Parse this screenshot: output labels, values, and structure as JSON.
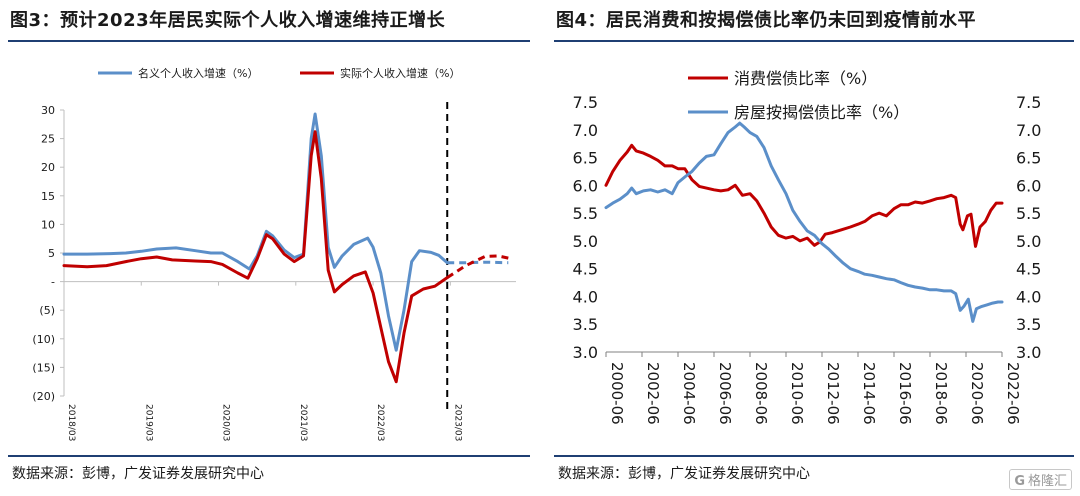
{
  "left_panel": {
    "title": "图3：预计2023年居民实际个人收入增速维持正增长",
    "source": "数据来源：彭博，广发证券发展研究中心"
  },
  "right_panel": {
    "title": "图4：居民消费和按揭偿债比率仍未回到疫情前水平",
    "source": "数据来源：彭博，广发证券发展研究中心"
  },
  "watermark": {
    "mark": "G",
    "text": "格隆汇"
  },
  "colors": {
    "blue": "#5b8fc9",
    "red": "#c00000",
    "rule": "#1f3f73",
    "axis": "#bfbfbf"
  },
  "chart_data": [
    {
      "type": "line",
      "xlabel": "",
      "ylabel": "",
      "ylim": [
        -20,
        30
      ],
      "y_ticks": [
        30,
        25,
        20,
        15,
        10,
        5,
        0,
        -5,
        -10,
        -15,
        -20
      ],
      "y_tick_labels": [
        "30",
        "25",
        "20",
        "15",
        "10",
        "5",
        "-",
        "(5)",
        "(10)",
        "(15)",
        "(20)"
      ],
      "x_tick_labels": [
        "2018/03",
        "2019/03",
        "2020/03",
        "2021/03",
        "2022/03",
        "2023/03"
      ],
      "legend": {
        "position": "top"
      },
      "vertical_marker": {
        "x": 2022.96,
        "style": "dashed"
      },
      "series": [
        {
          "name": "名义个人收入增速（%）",
          "color": "#5b8fc9",
          "points": [
            [
              2018.0,
              4.8
            ],
            [
              2018.3,
              4.8
            ],
            [
              2018.6,
              4.9
            ],
            [
              2018.8,
              5.0
            ],
            [
              2019.0,
              5.3
            ],
            [
              2019.2,
              5.7
            ],
            [
              2019.45,
              5.9
            ],
            [
              2019.7,
              5.4
            ],
            [
              2019.9,
              5.0
            ],
            [
              2020.05,
              5.0
            ],
            [
              2020.25,
              3.5
            ],
            [
              2020.4,
              2.2
            ],
            [
              2020.5,
              4.5
            ],
            [
              2020.62,
              8.8
            ],
            [
              2020.7,
              8.0
            ],
            [
              2020.85,
              5.5
            ],
            [
              2020.98,
              4.2
            ],
            [
              2021.1,
              4.8
            ],
            [
              2021.2,
              25.0
            ],
            [
              2021.25,
              29.3
            ],
            [
              2021.33,
              22.0
            ],
            [
              2021.42,
              6.0
            ],
            [
              2021.5,
              2.5
            ],
            [
              2021.6,
              4.5
            ],
            [
              2021.75,
              6.5
            ],
            [
              2021.93,
              7.6
            ],
            [
              2022.0,
              6.0
            ],
            [
              2022.1,
              1.5
            ],
            [
              2022.2,
              -6.0
            ],
            [
              2022.3,
              -12.0
            ],
            [
              2022.4,
              -5.0
            ],
            [
              2022.5,
              3.5
            ],
            [
              2022.6,
              5.4
            ],
            [
              2022.75,
              5.1
            ],
            [
              2022.85,
              4.6
            ],
            [
              2022.96,
              3.3
            ]
          ]
        },
        {
          "name": "实际个人收入增速（%）",
          "color": "#c00000",
          "points": [
            [
              2018.0,
              2.8
            ],
            [
              2018.3,
              2.6
            ],
            [
              2018.55,
              2.8
            ],
            [
              2018.8,
              3.5
            ],
            [
              2019.0,
              4.0
            ],
            [
              2019.2,
              4.3
            ],
            [
              2019.4,
              3.8
            ],
            [
              2019.7,
              3.6
            ],
            [
              2019.9,
              3.5
            ],
            [
              2020.05,
              3.0
            ],
            [
              2020.25,
              1.5
            ],
            [
              2020.38,
              0.6
            ],
            [
              2020.5,
              4.0
            ],
            [
              2020.62,
              8.2
            ],
            [
              2020.7,
              7.5
            ],
            [
              2020.85,
              4.8
            ],
            [
              2020.98,
              3.5
            ],
            [
              2021.1,
              4.5
            ],
            [
              2021.2,
              22.0
            ],
            [
              2021.25,
              26.2
            ],
            [
              2021.33,
              18.0
            ],
            [
              2021.42,
              2.0
            ],
            [
              2021.5,
              -1.8
            ],
            [
              2021.6,
              -0.5
            ],
            [
              2021.75,
              1.0
            ],
            [
              2021.9,
              1.7
            ],
            [
              2022.0,
              -2.0
            ],
            [
              2022.1,
              -8.0
            ],
            [
              2022.2,
              -14.0
            ],
            [
              2022.3,
              -17.5
            ],
            [
              2022.4,
              -9.0
            ],
            [
              2022.5,
              -2.5
            ],
            [
              2022.65,
              -1.3
            ],
            [
              2022.8,
              -0.8
            ],
            [
              2022.96,
              0.7
            ]
          ]
        }
      ],
      "forecast": [
        {
          "color": "#5b8fc9",
          "points": [
            [
              2022.96,
              3.3
            ],
            [
              2023.2,
              3.3
            ],
            [
              2023.45,
              3.4
            ],
            [
              2023.75,
              3.3
            ]
          ]
        },
        {
          "color": "#c00000",
          "points": [
            [
              2022.96,
              0.7
            ],
            [
              2023.2,
              2.8
            ],
            [
              2023.45,
              4.4
            ],
            [
              2023.62,
              4.5
            ],
            [
              2023.75,
              4.1
            ]
          ]
        }
      ]
    },
    {
      "type": "line",
      "xlabel": "",
      "ylabel": "",
      "xlim": [
        2000.42,
        2022.42
      ],
      "ylim": [
        3.0,
        7.5
      ],
      "y_ticks": [
        3.0,
        3.5,
        4.0,
        4.5,
        5.0,
        5.5,
        6.0,
        6.5,
        7.0,
        7.5
      ],
      "y_tick_labels": [
        "3.0",
        "3.5",
        "4.0",
        "4.5",
        "5.0",
        "5.5",
        "6.0",
        "6.5",
        "7.0",
        "7.5"
      ],
      "x_ticks": [
        2000.42,
        2002.42,
        2004.42,
        2006.42,
        2008.42,
        2010.42,
        2012.42,
        2014.42,
        2016.42,
        2018.42,
        2020.42,
        2022.42
      ],
      "x_tick_labels": [
        "2000-06",
        "2002-06",
        "2004-06",
        "2006-06",
        "2008-06",
        "2010-06",
        "2012-06",
        "2014-06",
        "2016-06",
        "2018-06",
        "2020-06",
        "2022-06"
      ],
      "legend": {
        "position": "top-left"
      },
      "series": [
        {
          "name": "消费偿债比率（%）",
          "color": "#c00000",
          "points": [
            [
              2000.42,
              6.0
            ],
            [
              2000.8,
              6.25
            ],
            [
              2001.2,
              6.45
            ],
            [
              2001.6,
              6.6
            ],
            [
              2001.85,
              6.72
            ],
            [
              2002.1,
              6.62
            ],
            [
              2002.5,
              6.58
            ],
            [
              2002.9,
              6.52
            ],
            [
              2003.3,
              6.45
            ],
            [
              2003.7,
              6.35
            ],
            [
              2004.1,
              6.35
            ],
            [
              2004.42,
              6.3
            ],
            [
              2004.8,
              6.3
            ],
            [
              2005.2,
              6.1
            ],
            [
              2005.6,
              5.98
            ],
            [
              2006.0,
              5.95
            ],
            [
              2006.42,
              5.92
            ],
            [
              2006.8,
              5.9
            ],
            [
              2007.2,
              5.92
            ],
            [
              2007.6,
              6.0
            ],
            [
              2008.0,
              5.82
            ],
            [
              2008.42,
              5.85
            ],
            [
              2008.8,
              5.72
            ],
            [
              2009.2,
              5.5
            ],
            [
              2009.6,
              5.25
            ],
            [
              2010.0,
              5.1
            ],
            [
              2010.42,
              5.05
            ],
            [
              2010.8,
              5.08
            ],
            [
              2011.2,
              5.0
            ],
            [
              2011.6,
              5.05
            ],
            [
              2012.0,
              4.92
            ],
            [
              2012.3,
              4.98
            ],
            [
              2012.6,
              5.12
            ],
            [
              2013.0,
              5.15
            ],
            [
              2013.5,
              5.2
            ],
            [
              2014.0,
              5.25
            ],
            [
              2014.42,
              5.3
            ],
            [
              2014.8,
              5.35
            ],
            [
              2015.2,
              5.45
            ],
            [
              2015.6,
              5.5
            ],
            [
              2016.0,
              5.45
            ],
            [
              2016.42,
              5.58
            ],
            [
              2016.8,
              5.65
            ],
            [
              2017.2,
              5.65
            ],
            [
              2017.6,
              5.7
            ],
            [
              2018.0,
              5.68
            ],
            [
              2018.42,
              5.72
            ],
            [
              2018.8,
              5.76
            ],
            [
              2019.2,
              5.78
            ],
            [
              2019.6,
              5.82
            ],
            [
              2019.85,
              5.78
            ],
            [
              2020.1,
              5.3
            ],
            [
              2020.25,
              5.2
            ],
            [
              2020.5,
              5.45
            ],
            [
              2020.7,
              5.48
            ],
            [
              2020.95,
              4.9
            ],
            [
              2021.2,
              5.25
            ],
            [
              2021.5,
              5.35
            ],
            [
              2021.8,
              5.55
            ],
            [
              2022.1,
              5.68
            ],
            [
              2022.42,
              5.68
            ]
          ]
        },
        {
          "name": "房屋按揭偿债比率（%）",
          "color": "#5b8fc9",
          "points": [
            [
              2000.42,
              5.6
            ],
            [
              2000.8,
              5.68
            ],
            [
              2001.2,
              5.75
            ],
            [
              2001.6,
              5.85
            ],
            [
              2001.85,
              5.95
            ],
            [
              2002.1,
              5.85
            ],
            [
              2002.5,
              5.9
            ],
            [
              2002.9,
              5.92
            ],
            [
              2003.3,
              5.88
            ],
            [
              2003.7,
              5.92
            ],
            [
              2004.1,
              5.85
            ],
            [
              2004.42,
              6.05
            ],
            [
              2004.8,
              6.15
            ],
            [
              2005.2,
              6.25
            ],
            [
              2005.6,
              6.4
            ],
            [
              2006.0,
              6.52
            ],
            [
              2006.42,
              6.55
            ],
            [
              2006.8,
              6.75
            ],
            [
              2007.2,
              6.95
            ],
            [
              2007.6,
              7.05
            ],
            [
              2007.85,
              7.12
            ],
            [
              2008.1,
              7.05
            ],
            [
              2008.42,
              6.95
            ],
            [
              2008.8,
              6.88
            ],
            [
              2009.2,
              6.68
            ],
            [
              2009.6,
              6.35
            ],
            [
              2010.0,
              6.1
            ],
            [
              2010.42,
              5.85
            ],
            [
              2010.8,
              5.55
            ],
            [
              2011.2,
              5.35
            ],
            [
              2011.6,
              5.18
            ],
            [
              2012.0,
              5.1
            ],
            [
              2012.42,
              4.95
            ],
            [
              2012.8,
              4.85
            ],
            [
              2013.2,
              4.72
            ],
            [
              2013.6,
              4.6
            ],
            [
              2014.0,
              4.5
            ],
            [
              2014.42,
              4.45
            ],
            [
              2014.8,
              4.4
            ],
            [
              2015.2,
              4.38
            ],
            [
              2015.6,
              4.35
            ],
            [
              2016.0,
              4.32
            ],
            [
              2016.42,
              4.3
            ],
            [
              2016.8,
              4.25
            ],
            [
              2017.2,
              4.2
            ],
            [
              2017.6,
              4.17
            ],
            [
              2018.0,
              4.15
            ],
            [
              2018.42,
              4.12
            ],
            [
              2018.8,
              4.12
            ],
            [
              2019.2,
              4.1
            ],
            [
              2019.6,
              4.1
            ],
            [
              2019.85,
              4.05
            ],
            [
              2020.1,
              3.75
            ],
            [
              2020.3,
              3.82
            ],
            [
              2020.55,
              3.95
            ],
            [
              2020.8,
              3.55
            ],
            [
              2021.0,
              3.78
            ],
            [
              2021.3,
              3.82
            ],
            [
              2021.6,
              3.85
            ],
            [
              2021.9,
              3.88
            ],
            [
              2022.2,
              3.9
            ],
            [
              2022.42,
              3.9
            ]
          ]
        }
      ]
    }
  ]
}
